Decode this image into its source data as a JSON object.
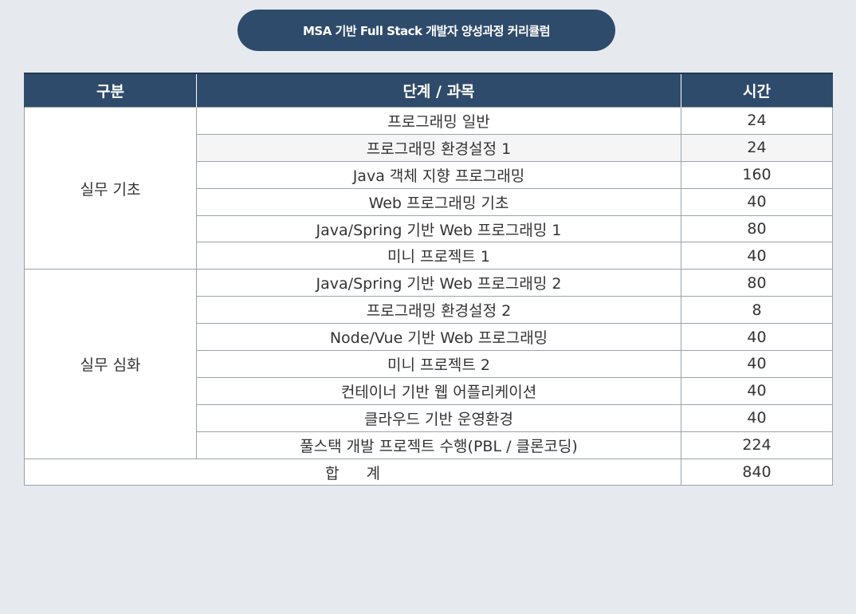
{
  "title": "MSA 기반 Full Stack 개발자 양성과정 커리큘럼",
  "headers": {
    "category": "구분",
    "course": "단계 / 과목",
    "hours": "시간"
  },
  "groups": [
    {
      "category": "실무 기초",
      "rows": [
        {
          "course": "프로그래밍 일반",
          "hours": "24"
        },
        {
          "course": "프로그래밍 환경설정 1",
          "hours": "24"
        },
        {
          "course": "Java 객체 지향 프로그래밍",
          "hours": "160"
        },
        {
          "course": "Web 프로그래밍 기초",
          "hours": "40"
        },
        {
          "course": "Java/Spring 기반 Web 프로그래밍 1",
          "hours": "80"
        },
        {
          "course": "미니 프로젝트 1",
          "hours": "40"
        }
      ]
    },
    {
      "category": "실무 심화",
      "rows": [
        {
          "course": "Java/Spring 기반 Web 프로그래밍 2",
          "hours": "80"
        },
        {
          "course": "프로그래밍 환경설정 2",
          "hours": "8"
        },
        {
          "course": "Node/Vue 기반 Web 프로그래밍",
          "hours": "40"
        },
        {
          "course": "미니 프로젝트 2",
          "hours": "40"
        },
        {
          "course": "컨테이너 기반 웹 어플리케이션",
          "hours": "40"
        },
        {
          "course": "클라우드 기반 운영환경",
          "hours": "40"
        },
        {
          "course": "풀스택 개발 프로젝트 수행(PBL / 클론코딩)",
          "hours": "224"
        }
      ]
    }
  ],
  "total": {
    "label": "합계",
    "hours": "840"
  },
  "colors": {
    "header_bg": "#2f4b6b",
    "page_bg": "#e6e9ee",
    "border": "#9aa3ad"
  }
}
